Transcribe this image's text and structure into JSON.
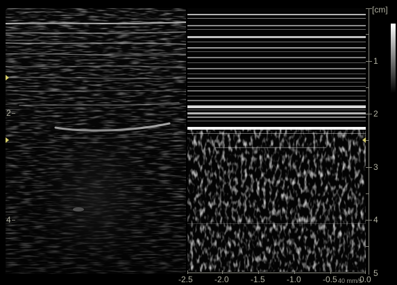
{
  "depth_scale": {
    "unit": "[cm]",
    "ticks": [
      "1",
      "2",
      "3",
      "4",
      "5"
    ]
  },
  "bmode_scale": {
    "ticks": [
      "2",
      "4"
    ]
  },
  "time_axis": {
    "ticks": [
      "-2.5",
      "-2.0",
      "-1.5",
      "-1.0",
      "-0.5",
      "0.0"
    ],
    "sweep_speed": "40 mm/s"
  },
  "colors": {
    "background": "#000000",
    "marker": "#d8d06a",
    "label": "#b3b3a3"
  },
  "icons": {
    "focus_marker": "yellow-triangle-icon",
    "grayscale_bar": "grayscale-bar-icon"
  }
}
